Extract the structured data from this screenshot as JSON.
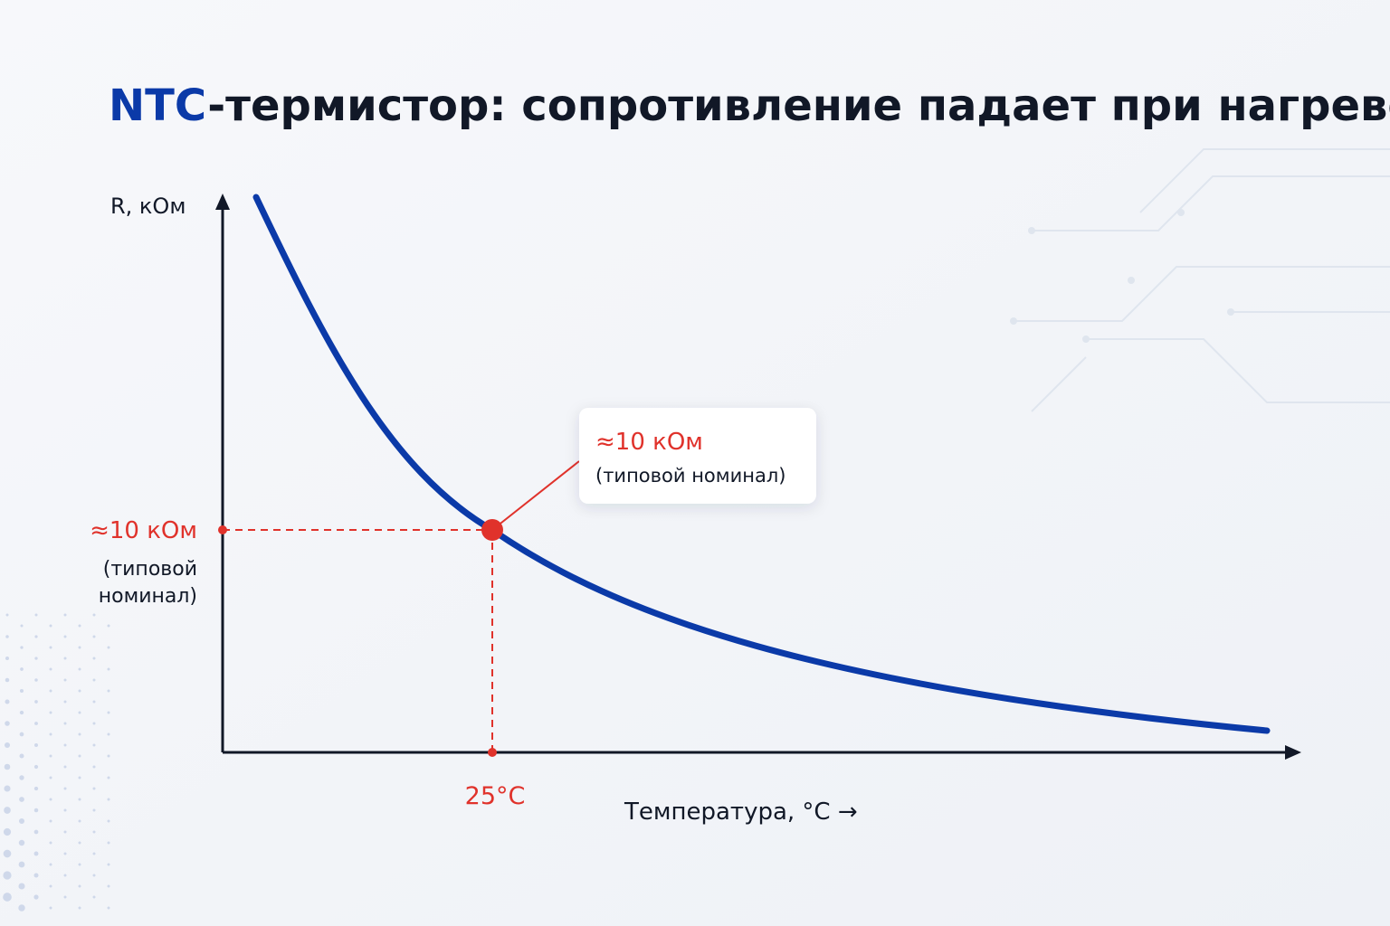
{
  "title": {
    "highlight": "NTC",
    "rest": "-термистор: сопротивление падает при нагреве"
  },
  "axes": {
    "y_label": "R, кОм",
    "x_label": "Температура, °C →"
  },
  "marker": {
    "x_label": "25°C",
    "y_label": "≈10 кОм",
    "y_note_line1": "(типовой",
    "y_note_line2": "номинал)"
  },
  "callout": {
    "value": "≈10 кОм",
    "note": "(типовой номинал)"
  }
}
